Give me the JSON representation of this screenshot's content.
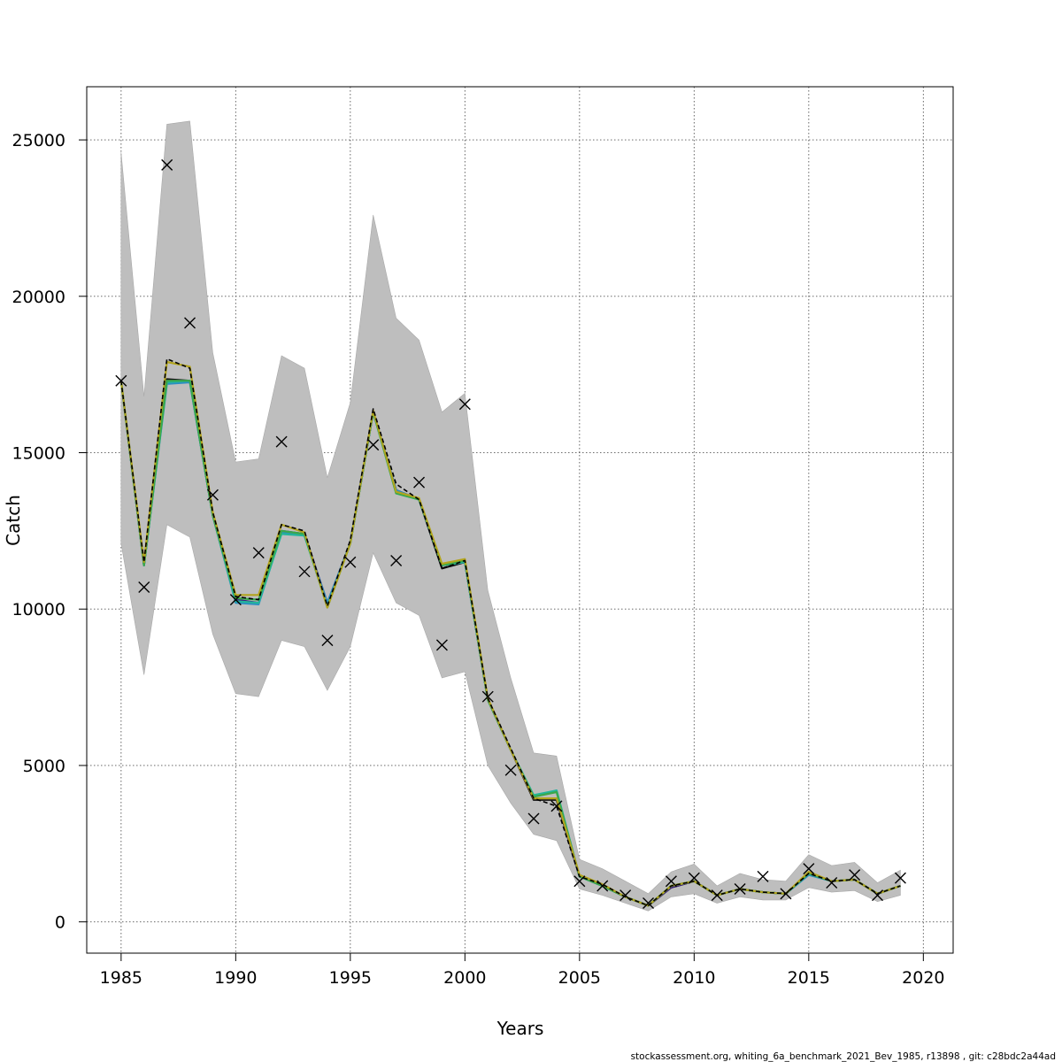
{
  "chart_data": {
    "type": "line",
    "title": "",
    "xlabel": "Years",
    "ylabel": "Catch",
    "xlim": [
      1983.5,
      2021.3
    ],
    "ylim": [
      -1000,
      26700
    ],
    "x_ticks": [
      1985,
      1990,
      1995,
      2000,
      2005,
      2010,
      2015,
      2020
    ],
    "y_ticks": [
      0,
      5000,
      10000,
      15000,
      20000,
      25000
    ],
    "grid": true,
    "years": [
      1985,
      1986,
      1987,
      1988,
      1989,
      1990,
      1991,
      1992,
      1993,
      1994,
      1995,
      1996,
      1997,
      1998,
      1999,
      2000,
      2001,
      2002,
      2003,
      2004,
      2005,
      2006,
      2007,
      2008,
      2009,
      2010,
      2011,
      2012,
      2013,
      2014,
      2015,
      2016,
      2017,
      2018,
      2019
    ],
    "confidence_band": {
      "upper": [
        24600,
        16800,
        25500,
        25600,
        18200,
        14700,
        14800,
        18100,
        17700,
        14200,
        16600,
        22600,
        19300,
        18600,
        16300,
        16900,
        10600,
        7800,
        5400,
        5300,
        2000,
        1700,
        1300,
        900,
        1600,
        1850,
        1150,
        1550,
        1350,
        1300,
        2150,
        1800,
        1900,
        1250,
        1650
      ],
      "lower": [
        12100,
        7900,
        12700,
        12300,
        9200,
        7300,
        7200,
        9000,
        8800,
        7400,
        8800,
        11800,
        10200,
        9800,
        7800,
        8000,
        5000,
        3800,
        2800,
        2600,
        1050,
        850,
        600,
        350,
        800,
        900,
        600,
        800,
        700,
        700,
        1100,
        950,
        1000,
        650,
        850
      ],
      "color": "#bebebe"
    },
    "observed": {
      "name": "",
      "marker": "x",
      "values": [
        17300,
        10700,
        24200,
        19150,
        13650,
        10300,
        11800,
        15350,
        11200,
        9000,
        11500,
        15250,
        11550,
        14050,
        8850,
        16550,
        7200,
        4850,
        3300,
        3700,
        1300,
        1150,
        850,
        600,
        1300,
        1400,
        850,
        1050,
        1450,
        900,
        1700,
        1250,
        1500,
        850,
        1400
      ]
    },
    "series": [
      {
        "name": "",
        "color": "#000000",
        "dashed": true,
        "values": [
          17300,
          11500,
          18000,
          17700,
          13100,
          10400,
          10300,
          12700,
          12500,
          10100,
          12200,
          16400,
          14000,
          13500,
          11300,
          11550,
          7150,
          5550,
          3950,
          3700,
          1450,
          1200,
          800,
          520,
          1150,
          1300,
          850,
          1050,
          950,
          900,
          1550,
          1300,
          1350,
          900,
          1150
        ]
      },
      {
        "name": "",
        "color": "#111111",
        "values": [
          17300,
          11400,
          17350,
          17300,
          13000,
          10250,
          10200,
          12450,
          12400,
          10100,
          12100,
          16300,
          13800,
          13500,
          11300,
          11500,
          7100,
          5500,
          3900,
          3900,
          1450,
          1150,
          800,
          520,
          1100,
          1300,
          850,
          1050,
          950,
          900,
          1550,
          1300,
          1350,
          900,
          1150
        ]
      },
      {
        "name": "",
        "color": "#3b1e7f",
        "values": [
          17300,
          11400,
          17300,
          17300,
          13000,
          10300,
          10200,
          12500,
          12400,
          10200,
          12100,
          16300,
          13800,
          13500,
          11400,
          11500,
          7100,
          5500,
          3950,
          3950,
          1450,
          1150,
          800,
          520,
          1100,
          1300,
          850,
          1050,
          950,
          900,
          1550,
          1300,
          1350,
          900,
          1150
        ]
      },
      {
        "name": "",
        "color": "#2c8fc1",
        "values": [
          17300,
          11400,
          17200,
          17250,
          13000,
          10200,
          10150,
          12450,
          12350,
          10200,
          12100,
          16300,
          13800,
          13500,
          11400,
          11500,
          7100,
          5500,
          4000,
          4200,
          1450,
          1150,
          800,
          520,
          1150,
          1300,
          850,
          1050,
          950,
          900,
          1500,
          1300,
          1350,
          900,
          1150
        ]
      },
      {
        "name": "",
        "color": "#22b59a",
        "values": [
          17300,
          11400,
          17250,
          17300,
          13000,
          10250,
          10200,
          12400,
          12350,
          10100,
          12100,
          16300,
          13700,
          13500,
          11400,
          11500,
          7100,
          5500,
          4050,
          4200,
          1450,
          1150,
          800,
          520,
          1150,
          1300,
          850,
          1050,
          950,
          900,
          1550,
          1300,
          1350,
          900,
          1150
        ]
      },
      {
        "name": "",
        "color": "#3aa84a",
        "values": [
          17300,
          11400,
          17300,
          17300,
          13000,
          10350,
          10300,
          12500,
          12400,
          10050,
          12100,
          16300,
          13700,
          13500,
          11400,
          11550,
          7100,
          5500,
          4000,
          4150,
          1450,
          1150,
          800,
          520,
          1150,
          1300,
          850,
          1050,
          950,
          900,
          1550,
          1300,
          1350,
          900,
          1150
        ]
      },
      {
        "name": "",
        "color": "#b2a41d",
        "values": [
          17300,
          11500,
          17900,
          17750,
          13100,
          10450,
          10450,
          12700,
          12450,
          10050,
          12100,
          16350,
          13750,
          13550,
          11450,
          11600,
          7150,
          5500,
          3950,
          3950,
          1500,
          1200,
          800,
          520,
          1150,
          1300,
          850,
          1050,
          950,
          900,
          1600,
          1300,
          1350,
          900,
          1150
        ]
      }
    ],
    "footer": "stockassessment.org, whiting_6a_benchmark_2021_Bev_1985, r13898 , git: c28bdc2a44ad"
  }
}
